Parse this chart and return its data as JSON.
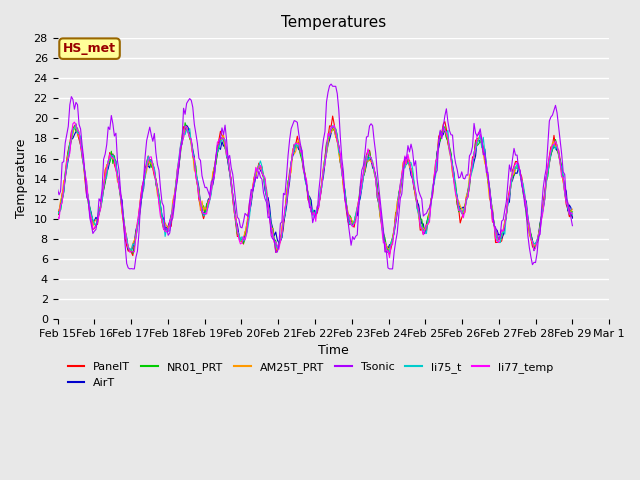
{
  "title": "Temperatures",
  "xlabel": "Time",
  "ylabel": "Temperature",
  "ylim": [
    0,
    28
  ],
  "yticks": [
    0,
    2,
    4,
    6,
    8,
    10,
    12,
    14,
    16,
    18,
    20,
    22,
    24,
    26,
    28
  ],
  "date_labels": [
    "Feb 15",
    "Feb 16",
    "Feb 17",
    "Feb 18",
    "Feb 19",
    "Feb 20",
    "Feb 21",
    "Feb 22",
    "Feb 23",
    "Feb 24",
    "Feb 25",
    "Feb 26",
    "Feb 27",
    "Feb 28",
    "Feb 29",
    "Mar 1"
  ],
  "series_colors": {
    "PanelT": "#ff0000",
    "AirT": "#0000cc",
    "NR01_PRT": "#00cc00",
    "AM25T_PRT": "#ff9900",
    "Tsonic": "#aa00ff",
    "li75_t": "#00cccc",
    "li77_temp": "#ff00ff"
  },
  "annotation_text": "HS_met",
  "annotation_facecolor": "#ffff99",
  "annotation_edgecolor": "#996600",
  "annotation_textcolor": "#990000",
  "bg_color": "#e8e8e8",
  "plot_bg_color": "#e8e8e8",
  "grid_color": "#ffffff",
  "n_points": 336,
  "seed": 42
}
